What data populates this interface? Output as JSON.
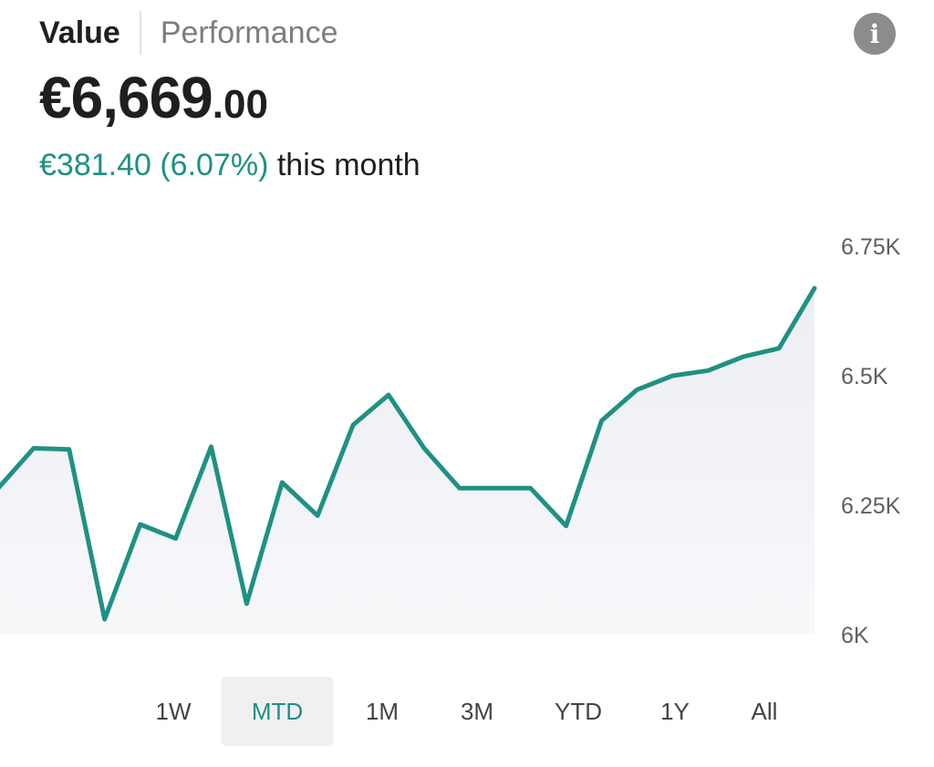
{
  "tabs": [
    {
      "label": "Value",
      "active": true
    },
    {
      "label": "Performance",
      "active": false
    }
  ],
  "info_icon": {
    "glyph": "i",
    "icon": "info-icon"
  },
  "portfolio": {
    "value_main": "€6,669",
    "value_decimal": ".00",
    "change_amount": "€381.40 (6.07%)",
    "change_period": "this month"
  },
  "colors": {
    "accent": "#1f8f84",
    "line": "#1f9183",
    "area": "#eef0f5"
  },
  "ranges": [
    {
      "label": "1W",
      "selected": false
    },
    {
      "label": "MTD",
      "selected": true
    },
    {
      "label": "1M",
      "selected": false
    },
    {
      "label": "3M",
      "selected": false
    },
    {
      "label": "YTD",
      "selected": false
    },
    {
      "label": "1Y",
      "selected": false
    },
    {
      "label": "All",
      "selected": false
    }
  ],
  "chart_data": {
    "type": "area",
    "ylim": [
      6000,
      6750
    ],
    "yticks": [
      6000,
      6250,
      6500,
      6750
    ],
    "ytick_labels": [
      "6K",
      "6.25K",
      "6.5K",
      "6.75K"
    ],
    "grid": false,
    "legend": "none",
    "series": [
      {
        "values": [
          6283,
          6360,
          6358,
          6030,
          6213,
          6186,
          6363,
          6060,
          6294,
          6230,
          6405,
          6463,
          6360,
          6283,
          6283,
          6283,
          6210,
          6413,
          6473,
          6500,
          6510,
          6537,
          6553,
          6669
        ]
      }
    ]
  }
}
